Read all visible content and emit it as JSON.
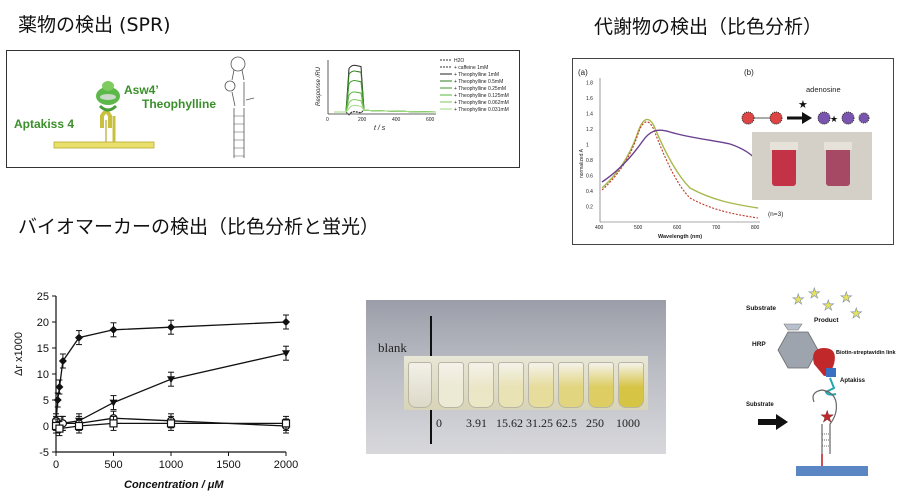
{
  "headings": {
    "spr": "薬物の検出 (SPR)",
    "colorimetric_metabolite": "代謝物の検出（比色分析）",
    "biomarker": "バイオマーカーの検出（比色分析と蛍光）"
  },
  "spr_panel": {
    "labels": {
      "aptakiss": "Aptakiss 4",
      "asw4": "Asw4’",
      "theophylline": "Theophylline"
    },
    "sensorgram": {
      "ylabel": "Response /RU",
      "xlabel": "t / s",
      "xticks": [
        "0",
        "200",
        "400",
        "600"
      ],
      "legend": [
        "H2O",
        "+ caffeine 1mM",
        "+ Theophylline 1mM",
        "+ Theophylline 0.5mM",
        "+ Theophylline 0.25mM",
        "+ Theophylline 0.125mM",
        "+ Theophylline 0.062mM",
        "+ Theophylline 0.031mM"
      ],
      "colors": [
        "#333333",
        "#333333",
        "#222222",
        "#2e7d1e",
        "#3f9a2a",
        "#56b43a",
        "#78c95a",
        "#9edb80"
      ]
    }
  },
  "colorimetric_panel": {
    "label_a": "(a)",
    "label_b": "(b)",
    "adenosine": "adenosine",
    "n_label": "(n=3)",
    "xlabel": "Wavelength (nm)",
    "ylabel": "normalized A",
    "yticks": [
      "0.2",
      "0.4",
      "0.6",
      "0.8",
      "1",
      "1.2",
      "1.4",
      "1.6",
      "1.8"
    ],
    "xticks": [
      "400",
      "500",
      "600",
      "700",
      "800"
    ],
    "colors": {
      "purple": "#6b3f8f",
      "green": "#a8b84a",
      "red": "#c0392b"
    }
  },
  "chart_data": {
    "type": "scatter",
    "xlabel": "Concentration / μM",
    "ylabel": "Δr x1000",
    "xlim": [
      0,
      2000
    ],
    "ylim": [
      -5,
      25
    ],
    "xticks": [
      "0",
      "500",
      "1000",
      "1500",
      "2000"
    ],
    "yticks": [
      "-5",
      "0",
      "5",
      "10",
      "15",
      "20",
      "25"
    ],
    "series": [
      {
        "marker": "diamond",
        "x": [
          0,
          15,
          30,
          60,
          200,
          500,
          1000,
          2000
        ],
        "y": [
          0.5,
          5,
          7.5,
          12.5,
          17,
          18.5,
          19,
          20
        ]
      },
      {
        "marker": "triangle",
        "x": [
          0,
          50,
          200,
          500,
          1000,
          2000
        ],
        "y": [
          0,
          0.5,
          1,
          4.5,
          9,
          14
        ]
      },
      {
        "marker": "circle",
        "x": [
          0,
          15,
          60,
          200,
          500,
          1000,
          2000
        ],
        "y": [
          1,
          0,
          0.5,
          0.5,
          1.5,
          1,
          0
        ]
      },
      {
        "marker": "square",
        "x": [
          0,
          30,
          200,
          500,
          1000,
          2000
        ],
        "y": [
          0,
          -0.5,
          0,
          0.5,
          0.5,
          0.5
        ]
      }
    ]
  },
  "vial_photo": {
    "blank": "blank",
    "concentrations": [
      "0",
      "3.91",
      "15.62",
      "31.25",
      "62.5",
      "250",
      "1000"
    ]
  },
  "schematic": {
    "substrate_top": "Substrate",
    "product": "Product",
    "hrp": "HRP",
    "biotin": "Biotin-streptavidin link",
    "aptakiss": "Aptakiss",
    "substrate_left": "Substrate"
  }
}
